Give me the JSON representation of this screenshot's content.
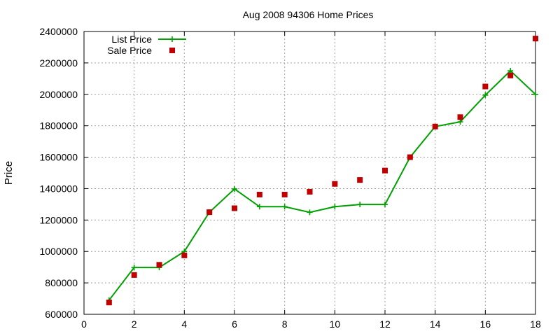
{
  "chart_data": {
    "type": "line",
    "title": "Aug 2008 94306 Home Prices",
    "xlabel": "",
    "ylabel": "Price",
    "xlim": [
      0,
      18
    ],
    "ylim": [
      600000,
      2400000
    ],
    "x_ticks": [
      0,
      2,
      4,
      6,
      8,
      10,
      12,
      14,
      16,
      18
    ],
    "y_ticks": [
      600000,
      800000,
      1000000,
      1200000,
      1400000,
      1600000,
      1800000,
      2000000,
      2200000,
      2400000
    ],
    "grid": true,
    "legend_position": "top-left",
    "series": [
      {
        "name": "List Price",
        "style": "line-plus",
        "color": "#00a000",
        "x": [
          1,
          2,
          3,
          4,
          5,
          6,
          7,
          8,
          9,
          10,
          11,
          12,
          13,
          14,
          15,
          16,
          17,
          18
        ],
        "values": [
          690000,
          898000,
          898000,
          1000000,
          1250000,
          1398000,
          1285000,
          1285000,
          1249000,
          1285000,
          1299000,
          1299000,
          1600000,
          1795000,
          1825000,
          1995000,
          2150000,
          2000000
        ]
      },
      {
        "name": "Sale Price",
        "style": "square-points",
        "color": "#c00000",
        "x": [
          1,
          2,
          3,
          4,
          5,
          6,
          7,
          8,
          9,
          10,
          11,
          12,
          13,
          14,
          15,
          16,
          17,
          18
        ],
        "values": [
          675000,
          850000,
          915000,
          975000,
          1250000,
          1275000,
          1362000,
          1362000,
          1380000,
          1430000,
          1455000,
          1515000,
          1600000,
          1795000,
          1855000,
          2050000,
          2120000,
          2355000
        ]
      }
    ]
  }
}
